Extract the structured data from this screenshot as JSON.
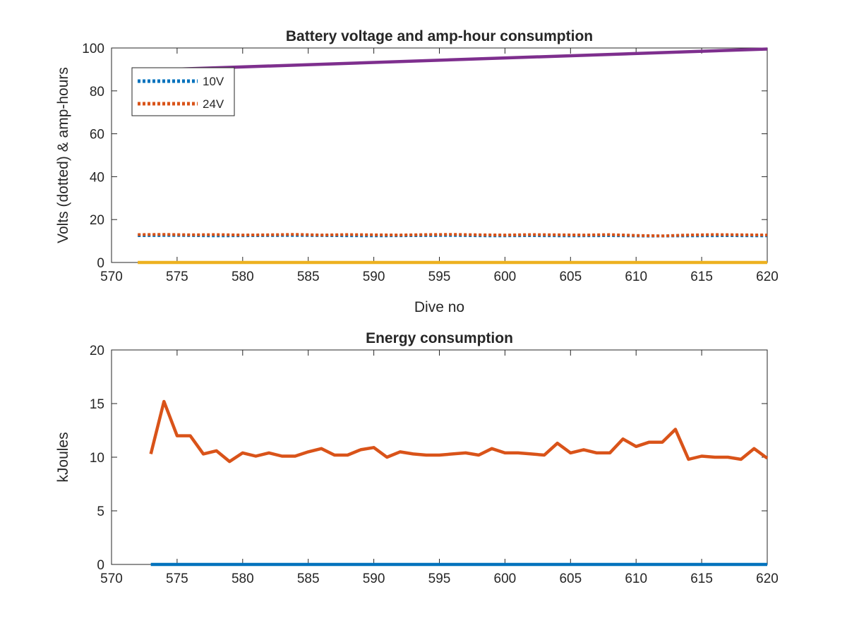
{
  "chart_data": [
    {
      "type": "line",
      "title": "Battery voltage and amp-hour consumption",
      "xlabel": "Dive no",
      "ylabel": "Volts (dotted) & amp-hours",
      "xlim": [
        570,
        620
      ],
      "ylim": [
        0,
        100
      ],
      "xticks": [
        "570",
        "575",
        "580",
        "585",
        "590",
        "595",
        "600",
        "605",
        "610",
        "615",
        "620"
      ],
      "yticks": [
        "0",
        "20",
        "40",
        "60",
        "80",
        "100"
      ],
      "legend": {
        "location": "top-left",
        "entries": [
          "10V",
          "24V"
        ]
      },
      "colors": {
        "blue": "#0072BD",
        "orange": "#D95319",
        "yellow": "#EDB120",
        "purple": "#7E2F8E"
      },
      "series": [
        {
          "name": "10V",
          "style": "dotted",
          "color": "#0072BD",
          "x": [
            572,
            575,
            578,
            581,
            584,
            587,
            590,
            593,
            596,
            599,
            602,
            605,
            608,
            611,
            614,
            617,
            620
          ],
          "y": [
            12.5,
            12.6,
            12.4,
            12.5,
            12.6,
            12.5,
            12.4,
            12.5,
            12.6,
            12.4,
            12.5,
            12.4,
            12.5,
            12.3,
            12.4,
            12.5,
            12.4
          ]
        },
        {
          "name": "24V",
          "style": "dotted",
          "color": "#D95319",
          "x": [
            572,
            574,
            576,
            578,
            580,
            582,
            584,
            586,
            588,
            590,
            592,
            594,
            596,
            598,
            600,
            602,
            604,
            606,
            608,
            610,
            612,
            614,
            616,
            618,
            620
          ],
          "y": [
            13.0,
            13.1,
            12.9,
            13.0,
            12.8,
            12.9,
            13.1,
            12.8,
            13.0,
            12.9,
            12.8,
            13.0,
            13.1,
            12.9,
            12.8,
            13.0,
            12.9,
            12.8,
            13.0,
            12.6,
            12.4,
            12.8,
            13.0,
            12.9,
            12.8
          ]
        },
        {
          "style": "solid",
          "color": "#EDB120",
          "x": [
            572,
            620
          ],
          "y": [
            0,
            0
          ]
        },
        {
          "style": "solid",
          "color": "#7E2F8E",
          "x": [
            572,
            620
          ],
          "y": [
            89.5,
            99.5
          ]
        }
      ]
    },
    {
      "type": "line",
      "title": "Energy consumption",
      "xlabel": "",
      "ylabel": "kJoules",
      "xlim": [
        570,
        620
      ],
      "ylim": [
        0,
        20
      ],
      "xticks": [
        "570",
        "575",
        "580",
        "585",
        "590",
        "595",
        "600",
        "605",
        "610",
        "615",
        "620"
      ],
      "yticks": [
        "0",
        "5",
        "10",
        "15",
        "20"
      ],
      "series": [
        {
          "style": "solid",
          "color": "#D95319",
          "x": [
            573,
            574,
            575,
            576,
            577,
            578,
            579,
            580,
            581,
            582,
            583,
            584,
            585,
            586,
            587,
            588,
            589,
            590,
            591,
            592,
            593,
            594,
            595,
            596,
            597,
            598,
            599,
            600,
            601,
            602,
            603,
            604,
            605,
            606,
            607,
            608,
            609,
            610,
            611,
            612,
            613,
            614,
            615,
            616,
            617,
            618,
            619,
            620
          ],
          "y": [
            10.3,
            15.2,
            12.0,
            12.0,
            10.3,
            10.6,
            9.6,
            10.4,
            10.1,
            10.4,
            10.1,
            10.1,
            10.5,
            10.8,
            10.2,
            10.2,
            10.7,
            10.9,
            10.0,
            10.5,
            10.3,
            10.2,
            10.2,
            10.3,
            10.4,
            10.2,
            10.8,
            10.4,
            10.4,
            10.3,
            10.2,
            11.3,
            10.4,
            10.7,
            10.4,
            10.4,
            11.7,
            11.0,
            11.4,
            11.4,
            12.6,
            9.8,
            10.1,
            10.0,
            10.0,
            9.8,
            10.8,
            9.9
          ]
        },
        {
          "style": "solid",
          "color": "#0072BD",
          "x": [
            573,
            620
          ],
          "y": [
            0,
            0
          ]
        }
      ]
    }
  ]
}
